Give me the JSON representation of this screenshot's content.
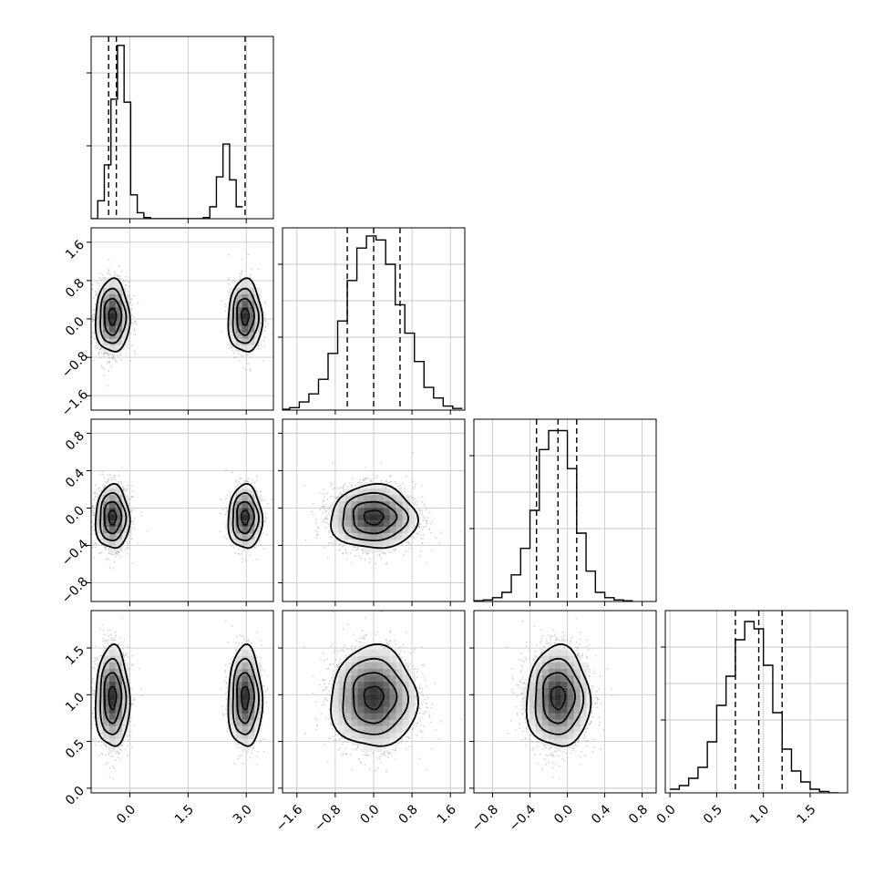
{
  "chart_data": {
    "type": "corner",
    "grid": true,
    "diagonal": [
      {
        "hist_start": -1.0,
        "hist_step": 0.17,
        "counts": [
          0,
          30,
          90,
          200,
          290,
          195,
          40,
          10,
          2,
          0,
          0,
          0,
          0,
          0,
          0,
          0,
          0,
          2,
          20,
          70,
          125,
          65,
          20
        ],
        "ymax": 305,
        "quantiles": [
          -0.55,
          -0.35,
          2.97
        ]
      },
      {
        "hist_start": -1.95,
        "hist_step": 0.2,
        "counts": [
          1,
          3,
          10,
          20,
          38,
          70,
          110,
          160,
          200,
          215,
          210,
          180,
          130,
          95,
          60,
          28,
          15,
          5,
          2
        ],
        "ymax": 225,
        "quantiles": [
          -0.55,
          0.0,
          0.55
        ]
      },
      {
        "hist_start": -1.0,
        "hist_step": 0.1,
        "counts": [
          1,
          2,
          5,
          12,
          35,
          70,
          120,
          200,
          225,
          225,
          175,
          90,
          40,
          12,
          5,
          2,
          1
        ],
        "ymax": 240,
        "quantiles": [
          -0.33,
          -0.1,
          0.1
        ]
      },
      {
        "hist_start": 0.0,
        "hist_step": 0.1,
        "counts": [
          5,
          10,
          20,
          35,
          70,
          120,
          160,
          210,
          235,
          225,
          175,
          110,
          60,
          30,
          15,
          5,
          2,
          0
        ],
        "ymax": 250,
        "quantiles": [
          0.7,
          0.95,
          1.2
        ]
      }
    ],
    "params": [
      {
        "range": [
          -1.0,
          3.7
        ],
        "ticks": [
          0.0,
          1.5,
          3.0
        ],
        "labels": [
          "0.0",
          "1.5",
          "3.0"
        ]
      },
      {
        "range": [
          -1.9,
          1.9
        ],
        "ticks": [
          -1.6,
          -0.8,
          0.0,
          0.8,
          1.6
        ],
        "labels": [
          "−1.6",
          "−0.8",
          "0.0",
          "0.8",
          "1.6"
        ]
      },
      {
        "range": [
          -1.0,
          0.95
        ],
        "ticks": [
          -0.8,
          -0.4,
          0.0,
          0.4,
          0.8
        ],
        "labels": [
          "−0.8",
          "−0.4",
          "0.0",
          "0.4",
          "0.8"
        ]
      },
      {
        "range": [
          -0.05,
          1.9
        ],
        "ticks": [
          0.0,
          0.5,
          1.0,
          1.5
        ],
        "labels": [
          "0.0",
          "0.5",
          "1.0",
          "1.5"
        ]
      }
    ],
    "pairs": [
      {
        "row": 1,
        "col": 0,
        "clusters": [
          {
            "cx": -0.45,
            "cy": 0.05,
            "sx": 0.22,
            "sy": 0.38,
            "n": 2000
          },
          {
            "cx": 2.97,
            "cy": 0.05,
            "sx": 0.22,
            "sy": 0.38,
            "n": 900
          }
        ]
      },
      {
        "row": 2,
        "col": 0,
        "clusters": [
          {
            "cx": -0.45,
            "cy": -0.1,
            "sx": 0.22,
            "sy": 0.17,
            "n": 2000
          },
          {
            "cx": 2.97,
            "cy": -0.1,
            "sx": 0.22,
            "sy": 0.17,
            "n": 900
          }
        ]
      },
      {
        "row": 2,
        "col": 1,
        "clusters": [
          {
            "cx": 0.0,
            "cy": -0.1,
            "sx": 0.45,
            "sy": 0.17,
            "n": 3000
          }
        ]
      },
      {
        "row": 3,
        "col": 0,
        "clusters": [
          {
            "cx": -0.45,
            "cy": 0.97,
            "sx": 0.22,
            "sy": 0.27,
            "n": 2000
          },
          {
            "cx": 2.97,
            "cy": 0.97,
            "sx": 0.22,
            "sy": 0.27,
            "n": 900
          }
        ]
      },
      {
        "row": 3,
        "col": 1,
        "clusters": [
          {
            "cx": 0.0,
            "cy": 0.97,
            "sx": 0.45,
            "sy": 0.27,
            "n": 3000
          }
        ]
      },
      {
        "row": 3,
        "col": 2,
        "clusters": [
          {
            "cx": -0.1,
            "cy": 0.97,
            "sx": 0.17,
            "sy": 0.27,
            "n": 3000
          }
        ]
      }
    ]
  }
}
